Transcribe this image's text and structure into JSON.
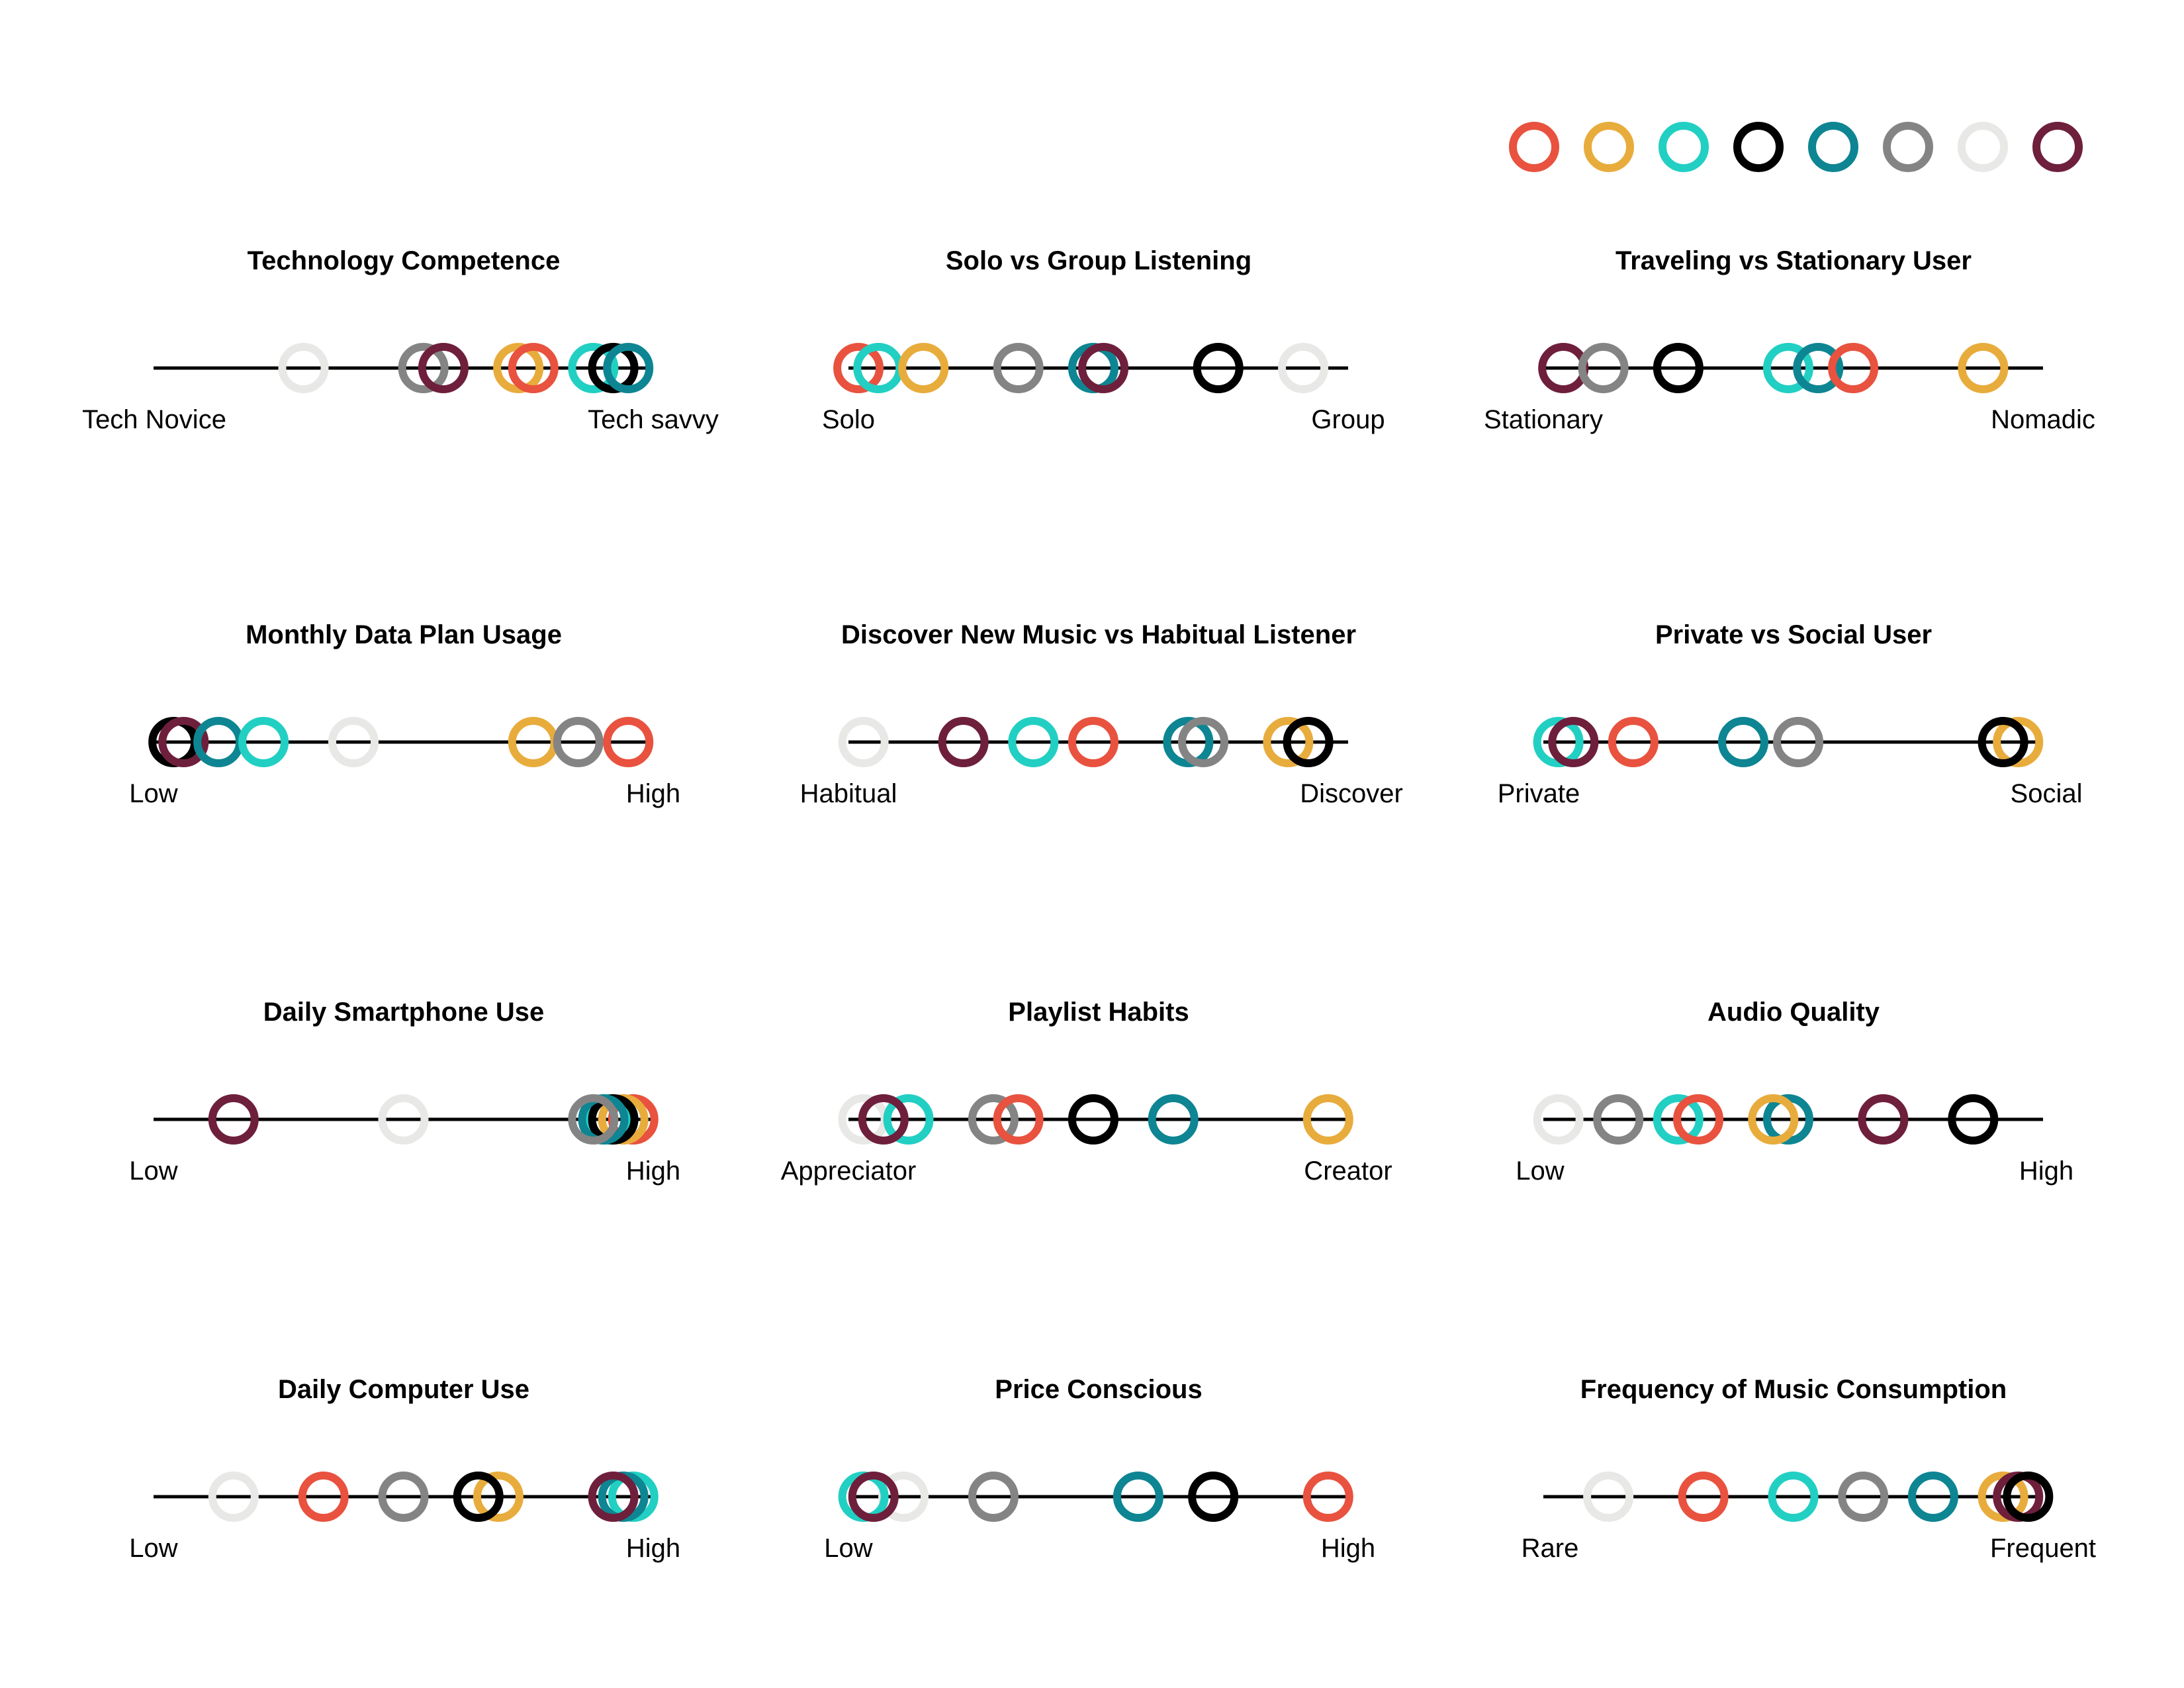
{
  "colors": {
    "red": "#e8523f",
    "gold": "#e8ac3c",
    "turquoise": "#22cfc3",
    "black": "#000000",
    "teal": "#0e8592",
    "gray": "#848484",
    "light": "#e8e8e6",
    "maroon": "#6e1f3c"
  },
  "legend_order": [
    "red",
    "gold",
    "turquoise",
    "black",
    "teal",
    "gray",
    "light",
    "maroon"
  ],
  "chart_data": [
    {
      "type": "scatter",
      "title": "Technology Competence",
      "left_label": "Tech Novice",
      "right_label": "Tech savvy",
      "points": [
        {
          "color": "light",
          "value": 0.3
        },
        {
          "color": "gray",
          "value": 0.54
        },
        {
          "color": "maroon",
          "value": 0.58
        },
        {
          "color": "gold",
          "value": 0.73
        },
        {
          "color": "red",
          "value": 0.76
        },
        {
          "color": "turquoise",
          "value": 0.88
        },
        {
          "color": "black",
          "value": 0.92
        },
        {
          "color": "teal",
          "value": 0.95
        }
      ]
    },
    {
      "type": "scatter",
      "title": "Solo vs Group Listening",
      "left_label": "Solo",
      "right_label": "Group",
      "points": [
        {
          "color": "red",
          "value": 0.02
        },
        {
          "color": "turquoise",
          "value": 0.06
        },
        {
          "color": "gold",
          "value": 0.15
        },
        {
          "color": "gray",
          "value": 0.34
        },
        {
          "color": "teal",
          "value": 0.49
        },
        {
          "color": "maroon",
          "value": 0.51
        },
        {
          "color": "black",
          "value": 0.74
        },
        {
          "color": "light",
          "value": 0.91
        }
      ]
    },
    {
      "type": "scatter",
      "title": "Traveling vs Stationary User",
      "left_label": "Stationary",
      "right_label": "Nomadic",
      "points": [
        {
          "color": "maroon",
          "value": 0.04
        },
        {
          "color": "gray",
          "value": 0.12
        },
        {
          "color": "black",
          "value": 0.27
        },
        {
          "color": "turquoise",
          "value": 0.49
        },
        {
          "color": "teal",
          "value": 0.55
        },
        {
          "color": "red",
          "value": 0.62
        },
        {
          "color": "gold",
          "value": 0.88
        }
      ]
    },
    {
      "type": "scatter",
      "title": "Monthly Data Plan Usage",
      "left_label": "Low",
      "right_label": "High",
      "points": [
        {
          "color": "black",
          "value": 0.04
        },
        {
          "color": "maroon",
          "value": 0.06
        },
        {
          "color": "teal",
          "value": 0.13
        },
        {
          "color": "turquoise",
          "value": 0.22
        },
        {
          "color": "light",
          "value": 0.4
        },
        {
          "color": "gold",
          "value": 0.76
        },
        {
          "color": "gray",
          "value": 0.85
        },
        {
          "color": "red",
          "value": 0.95
        }
      ]
    },
    {
      "type": "scatter",
      "title": "Discover New Music vs Habitual Listener",
      "left_label": "Habitual",
      "right_label": "Discover",
      "points": [
        {
          "color": "light",
          "value": 0.03
        },
        {
          "color": "maroon",
          "value": 0.23
        },
        {
          "color": "turquoise",
          "value": 0.37
        },
        {
          "color": "red",
          "value": 0.49
        },
        {
          "color": "teal",
          "value": 0.68
        },
        {
          "color": "gray",
          "value": 0.71
        },
        {
          "color": "gold",
          "value": 0.88
        },
        {
          "color": "black",
          "value": 0.92
        }
      ]
    },
    {
      "type": "scatter",
      "title": "Private vs Social User",
      "left_label": "Private",
      "right_label": "Social",
      "points": [
        {
          "color": "turquoise",
          "value": 0.03
        },
        {
          "color": "maroon",
          "value": 0.06
        },
        {
          "color": "red",
          "value": 0.18
        },
        {
          "color": "teal",
          "value": 0.4
        },
        {
          "color": "gray",
          "value": 0.51
        },
        {
          "color": "gold",
          "value": 0.95
        },
        {
          "color": "black",
          "value": 0.92
        }
      ]
    },
    {
      "type": "scatter",
      "title": "Daily Smartphone Use",
      "left_label": "Low",
      "right_label": "High",
      "points": [
        {
          "color": "maroon",
          "value": 0.16
        },
        {
          "color": "light",
          "value": 0.5
        },
        {
          "color": "red",
          "value": 0.96
        },
        {
          "color": "gold",
          "value": 0.94
        },
        {
          "color": "turquoise",
          "value": 0.91
        },
        {
          "color": "black",
          "value": 0.92
        },
        {
          "color": "teal",
          "value": 0.9
        },
        {
          "color": "gray",
          "value": 0.88
        }
      ]
    },
    {
      "type": "scatter",
      "title": "Playlist Habits",
      "left_label": "Appreciator",
      "right_label": "Creator",
      "points": [
        {
          "color": "light",
          "value": 0.03
        },
        {
          "color": "turquoise",
          "value": 0.12
        },
        {
          "color": "maroon",
          "value": 0.07
        },
        {
          "color": "gray",
          "value": 0.29
        },
        {
          "color": "red",
          "value": 0.34
        },
        {
          "color": "black",
          "value": 0.49
        },
        {
          "color": "teal",
          "value": 0.65
        },
        {
          "color": "gold",
          "value": 0.96
        }
      ]
    },
    {
      "type": "scatter",
      "title": "Audio Quality",
      "left_label": "Low",
      "right_label": "High",
      "points": [
        {
          "color": "light",
          "value": 0.03
        },
        {
          "color": "gray",
          "value": 0.15
        },
        {
          "color": "turquoise",
          "value": 0.27
        },
        {
          "color": "red",
          "value": 0.31
        },
        {
          "color": "teal",
          "value": 0.49
        },
        {
          "color": "gold",
          "value": 0.46
        },
        {
          "color": "maroon",
          "value": 0.68
        },
        {
          "color": "black",
          "value": 0.86
        }
      ]
    },
    {
      "type": "scatter",
      "title": "Daily Computer Use",
      "left_label": "Low",
      "right_label": "High",
      "points": [
        {
          "color": "light",
          "value": 0.16
        },
        {
          "color": "red",
          "value": 0.34
        },
        {
          "color": "gray",
          "value": 0.5
        },
        {
          "color": "gold",
          "value": 0.69
        },
        {
          "color": "black",
          "value": 0.65
        },
        {
          "color": "turquoise",
          "value": 0.96
        },
        {
          "color": "teal",
          "value": 0.94
        },
        {
          "color": "maroon",
          "value": 0.92
        }
      ]
    },
    {
      "type": "scatter",
      "title": "Price Conscious",
      "left_label": "Low",
      "right_label": "High",
      "points": [
        {
          "color": "light",
          "value": 0.11
        },
        {
          "color": "turquoise",
          "value": 0.03
        },
        {
          "color": "maroon",
          "value": 0.05
        },
        {
          "color": "gray",
          "value": 0.29
        },
        {
          "color": "teal",
          "value": 0.58
        },
        {
          "color": "black",
          "value": 0.73
        },
        {
          "color": "red",
          "value": 0.96
        }
      ]
    },
    {
      "type": "scatter",
      "title": "Frequency of Music Consumption",
      "left_label": "Rare",
      "right_label": "Frequent",
      "points": [
        {
          "color": "light",
          "value": 0.13
        },
        {
          "color": "red",
          "value": 0.32
        },
        {
          "color": "turquoise",
          "value": 0.5
        },
        {
          "color": "gray",
          "value": 0.64
        },
        {
          "color": "teal",
          "value": 0.78
        },
        {
          "color": "gold",
          "value": 0.92
        },
        {
          "color": "maroon",
          "value": 0.95
        },
        {
          "color": "black",
          "value": 0.97
        }
      ]
    }
  ]
}
